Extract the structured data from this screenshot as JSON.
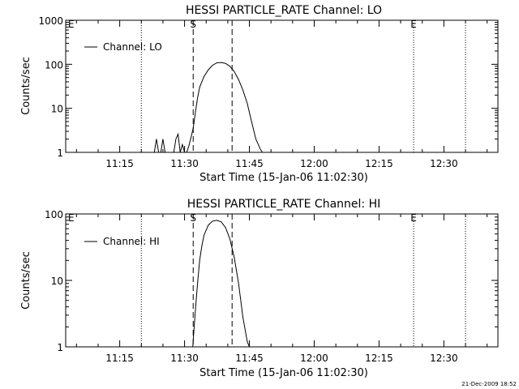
{
  "chart_data": [
    {
      "type": "line",
      "title": "HESSI PARTICLE_RATE Channel: LO",
      "xlabel": "Start Time (15-Jan-06 11:02:30)",
      "ylabel": "Counts/sec",
      "y_scale": "log",
      "ylim": [
        1,
        1000
      ],
      "y_tick_labels": [
        "1000",
        "100",
        "10",
        "1"
      ],
      "x_tick_labels": [
        "11:15",
        "11:30",
        "11:45",
        "12:00",
        "12:15",
        "12:30"
      ],
      "xlim_minutes_after_start": [
        0,
        100
      ],
      "legend": "top-left",
      "grid": false,
      "series": [
        {
          "name": "Channel: LO",
          "x": [
            20.5,
            21,
            21.5,
            22,
            22.5,
            23,
            23.5,
            24,
            24.5,
            25,
            25.5,
            26,
            26.5,
            27,
            27.5,
            28,
            28.5,
            29,
            29.5,
            30,
            30.5,
            31,
            32,
            33,
            34,
            35,
            36,
            37,
            38,
            39,
            40,
            41,
            42,
            43,
            44,
            45,
            45.5
          ],
          "y": [
            1,
            2,
            1,
            1,
            2,
            1,
            1,
            1,
            1,
            1,
            2,
            2.6,
            1,
            1.5,
            1,
            1,
            1.4,
            2.2,
            3.5,
            8,
            17,
            30,
            53,
            75,
            95,
            108,
            110,
            105,
            90,
            68,
            45,
            26,
            13,
            5,
            2,
            1.2,
            1
          ]
        }
      ],
      "markers": [
        {
          "label": "S",
          "time": "11:32",
          "style": "dashed"
        },
        {
          "label": "",
          "time": "11:41",
          "style": "dashed"
        },
        {
          "label": "",
          "time": "11:20",
          "style": "dotted"
        },
        {
          "label": "E",
          "time": "12:23",
          "style": "dotted"
        },
        {
          "label": "",
          "time": "12:35",
          "style": "dotted"
        }
      ]
    },
    {
      "type": "line",
      "title": "HESSI PARTICLE_RATE Channel: HI",
      "xlabel": "Start Time (15-Jan-06 11:02:30)",
      "ylabel": "Counts/sec",
      "y_scale": "log",
      "ylim": [
        1,
        100
      ],
      "y_tick_labels": [
        "100",
        "10",
        "1"
      ],
      "x_tick_labels": [
        "11:15",
        "11:30",
        "11:45",
        "12:00",
        "12:15",
        "12:30"
      ],
      "xlim_minutes_after_start": [
        0,
        100
      ],
      "legend": "top-left",
      "grid": false,
      "series": [
        {
          "name": "Channel: HI",
          "x": [
            29.4,
            30,
            30.5,
            31,
            31.5,
            32,
            33,
            34,
            35,
            36,
            37,
            38,
            39,
            40,
            40.5,
            41,
            42,
            42.5
          ],
          "y": [
            1,
            3.5,
            9,
            20,
            33,
            48,
            68,
            78,
            80,
            76,
            62,
            42,
            22,
            9,
            5,
            2.8,
            1.2,
            1
          ]
        }
      ],
      "markers": [
        {
          "label": "S",
          "time": "11:32",
          "style": "dashed"
        },
        {
          "label": "",
          "time": "11:41",
          "style": "dashed"
        },
        {
          "label": "",
          "time": "11:20",
          "style": "dotted"
        },
        {
          "label": "E",
          "time": "12:23",
          "style": "dotted"
        },
        {
          "label": "",
          "time": "12:35",
          "style": "dotted"
        }
      ]
    }
  ],
  "corner_left_label": "E",
  "footer": {
    "timestamp": "21-Dec-2009 18:52"
  }
}
